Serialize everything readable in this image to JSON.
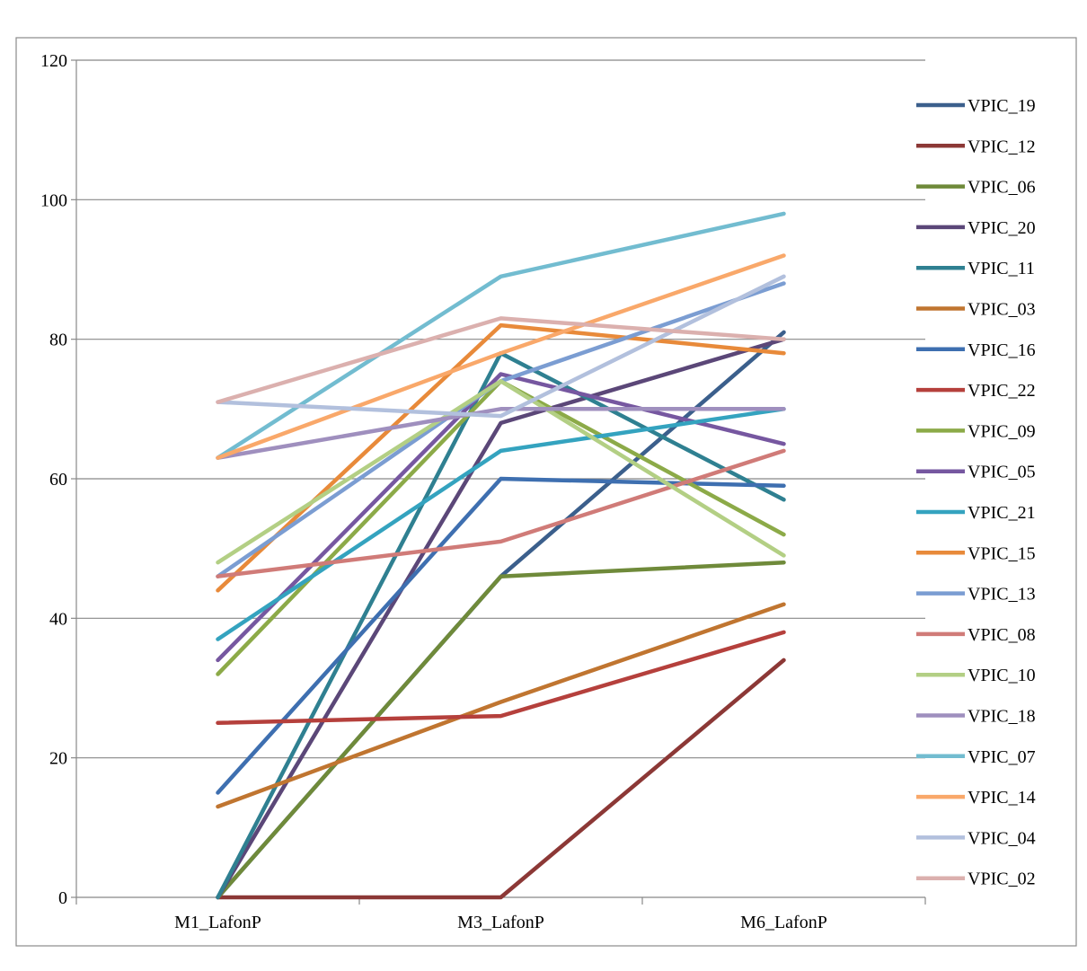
{
  "chart_data": {
    "type": "line",
    "title": "",
    "xlabel": "",
    "ylabel": "",
    "categories": [
      "M1_LafonP",
      "M3_LafonP",
      "M6_LafonP"
    ],
    "ylim": [
      0,
      120
    ],
    "yticks": [
      0,
      20,
      40,
      60,
      80,
      100,
      120
    ],
    "grid": true,
    "legend_position": "right",
    "series": [
      {
        "name": "VPIC_19",
        "color": "#3b5f8c",
        "values": [
          0,
          46,
          81
        ]
      },
      {
        "name": "VPIC_12",
        "color": "#8c3836",
        "values": [
          0,
          0,
          34
        ]
      },
      {
        "name": "VPIC_06",
        "color": "#6f8a3a",
        "values": [
          0,
          46,
          48
        ]
      },
      {
        "name": "VPIC_20",
        "color": "#5b4778",
        "values": [
          0,
          68,
          80
        ]
      },
      {
        "name": "VPIC_11",
        "color": "#2f8091",
        "values": [
          0,
          78,
          57
        ]
      },
      {
        "name": "VPIC_03",
        "color": "#c07530",
        "values": [
          13,
          28,
          42
        ]
      },
      {
        "name": "VPIC_16",
        "color": "#3e6fb0",
        "values": [
          15,
          60,
          59
        ]
      },
      {
        "name": "VPIC_22",
        "color": "#b5403c",
        "values": [
          25,
          26,
          38
        ]
      },
      {
        "name": "VPIC_09",
        "color": "#8caa48",
        "values": [
          32,
          74,
          52
        ]
      },
      {
        "name": "VPIC_05",
        "color": "#7657a0",
        "values": [
          34,
          75,
          65
        ]
      },
      {
        "name": "VPIC_21",
        "color": "#34a3bf",
        "values": [
          37,
          64,
          70
        ]
      },
      {
        "name": "VPIC_15",
        "color": "#e88a3a",
        "values": [
          44,
          82,
          78
        ]
      },
      {
        "name": "VPIC_13",
        "color": "#7b9dd2",
        "values": [
          46,
          74,
          88
        ]
      },
      {
        "name": "VPIC_08",
        "color": "#d07b78",
        "values": [
          46,
          51,
          64
        ]
      },
      {
        "name": "VPIC_10",
        "color": "#b3cf84",
        "values": [
          48,
          74,
          49
        ]
      },
      {
        "name": "VPIC_18",
        "color": "#9f8fbe",
        "values": [
          63,
          70,
          70
        ]
      },
      {
        "name": "VPIC_07",
        "color": "#72bcd0",
        "values": [
          63,
          89,
          98
        ]
      },
      {
        "name": "VPIC_14",
        "color": "#f9a86a",
        "values": [
          63,
          78,
          92
        ]
      },
      {
        "name": "VPIC_04",
        "color": "#b2c0dd",
        "values": [
          71,
          69,
          89
        ]
      },
      {
        "name": "VPIC_02",
        "color": "#dbb0ae",
        "values": [
          71,
          83,
          80
        ]
      }
    ]
  }
}
